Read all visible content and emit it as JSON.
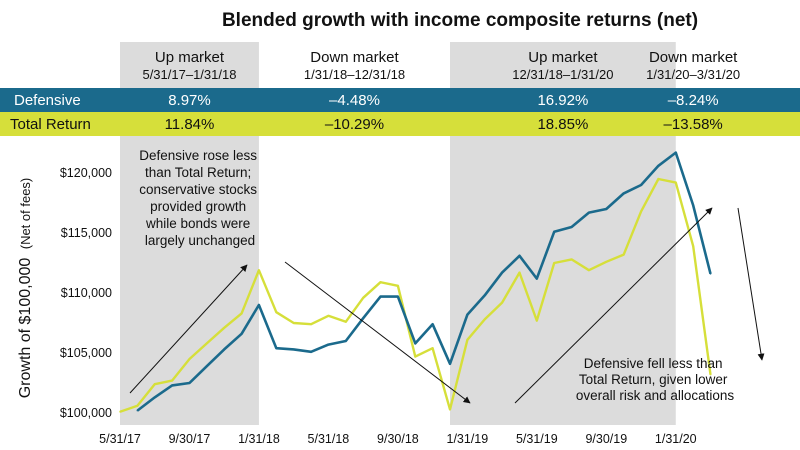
{
  "colors": {
    "defensive": "#1b6a8c",
    "total_return": "#d6df3a",
    "up_shade": "#dcdcdc",
    "defensive_band": "#1b6a8c",
    "total_band": "#d6df3a"
  },
  "chart_data": {
    "type": "line",
    "title": "Blended growth with income composite returns (net)",
    "ylabel": "Growth of $100,000",
    "ylabel_note": "(Net of fees)",
    "ylim": [
      99000,
      123000
    ],
    "yticks": [
      100000,
      105000,
      110000,
      115000,
      120000
    ],
    "ytick_labels": [
      "$100,000",
      "$105,000",
      "$110,000",
      "$115,000",
      "$120,000"
    ],
    "xlim": [
      0,
      38
    ],
    "xticks": [
      0,
      4,
      8,
      12,
      16,
      20,
      24,
      28,
      32
    ],
    "xtick_labels": [
      "5/31/17",
      "9/30/17",
      "1/31/18",
      "5/31/18",
      "9/30/18",
      "1/31/19",
      "5/31/19",
      "9/30/19",
      "1/31/20"
    ],
    "periods": [
      {
        "name": "Up market",
        "range": "5/31/17–1/31/18",
        "start": 0,
        "end": 8,
        "shaded": true,
        "defensive": "8.97%",
        "total_return": "11.84%"
      },
      {
        "name": "Down market",
        "range": "1/31/18–12/31/18",
        "start": 8,
        "end": 19,
        "shaded": false,
        "defensive": "–4.48%",
        "total_return": "–10.29%"
      },
      {
        "name": "Up market",
        "range": "12/31/18–1/31/20",
        "start": 19,
        "end": 32,
        "shaded": true,
        "defensive": "16.92%",
        "total_return": "18.85%"
      },
      {
        "name": "Down market",
        "range": "1/31/20–3/31/20",
        "start": 32,
        "end": 34,
        "shaded": false,
        "defensive": "–8.24%",
        "total_return": "–13.58%"
      }
    ],
    "series": [
      {
        "name": "Defensive",
        "x": [
          1,
          2,
          3,
          4,
          5,
          6,
          7,
          8,
          9,
          10,
          11,
          12,
          13,
          14,
          15,
          16,
          17,
          18,
          19,
          20,
          21,
          22,
          23,
          24,
          25,
          26,
          27,
          28,
          29,
          30,
          31,
          32,
          33,
          34
        ],
        "values": [
          100200,
          101300,
          102300,
          102500,
          103900,
          105300,
          106600,
          109000,
          105400,
          105300,
          105100,
          105700,
          106000,
          107900,
          109700,
          109700,
          105800,
          107400,
          104100,
          108200,
          109800,
          111700,
          113100,
          111200,
          115100,
          115500,
          116700,
          117000,
          118300,
          119000,
          120600,
          121700,
          117300,
          111600
        ]
      },
      {
        "name": "Total Return",
        "x": [
          0,
          1,
          2,
          3,
          4,
          5,
          6,
          7,
          8,
          9,
          10,
          11,
          12,
          13,
          14,
          15,
          16,
          17,
          18,
          19,
          20,
          21,
          22,
          23,
          24,
          25,
          26,
          27,
          28,
          29,
          30,
          31,
          32,
          33,
          34
        ],
        "values": [
          100100,
          100600,
          102400,
          102700,
          104500,
          105800,
          107100,
          108300,
          111900,
          108400,
          107500,
          107400,
          108100,
          107600,
          109600,
          110900,
          110600,
          104700,
          105400,
          100300,
          106100,
          107800,
          109200,
          111700,
          107700,
          112500,
          112800,
          111900,
          112600,
          113200,
          116800,
          119500,
          119200,
          113900,
          103200
        ]
      }
    ],
    "row_labels": {
      "defensive": "Defensive",
      "total_return": "Total Return"
    },
    "annotations": [
      {
        "lines": [
          "Defensive rose less",
          "than Total Return;",
          "conservative stocks",
          "provided growth",
          "while bonds were",
          "largely unchanged"
        ]
      },
      {
        "lines": [
          "Defensive fell less than",
          "Total Return, given lower",
          "overall risk and allocations"
        ]
      }
    ]
  }
}
